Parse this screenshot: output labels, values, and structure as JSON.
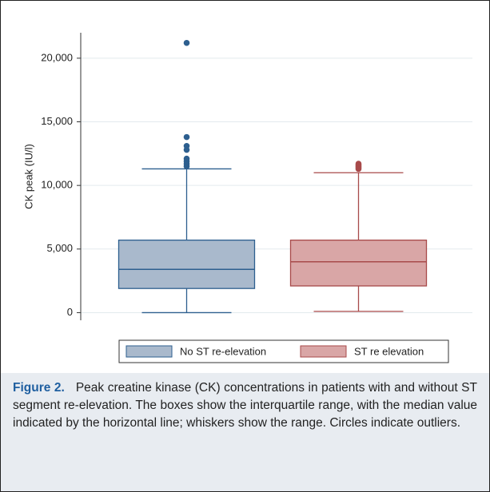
{
  "chart_data": {
    "type": "box",
    "ylabel": "CK peak (IU/l)",
    "ylim": [
      -600,
      22000
    ],
    "yticks": [
      0,
      {
        "value": 5000,
        "label": "5,000"
      },
      {
        "value": 10000,
        "label": "10,000"
      },
      {
        "value": 15000,
        "label": "15,000"
      },
      {
        "value": 20000,
        "label": "20,000"
      }
    ],
    "grid": true,
    "series": [
      {
        "name": "No ST re-elevation",
        "color": "#a9b9cc",
        "edge": "#2d5f8f",
        "values": {
          "low": 0,
          "q1": 1900,
          "median": 3400,
          "q3": 5700,
          "high": 11300
        },
        "outliers": [
          11500,
          11700,
          11900,
          12100,
          12800,
          13100,
          13800,
          21200
        ]
      },
      {
        "name": "ST re elevation",
        "color": "#d9a6a6",
        "edge": "#a84a4a",
        "values": {
          "low": 100,
          "q1": 2100,
          "median": 4000,
          "q3": 5700,
          "high": 11000
        },
        "outliers": [
          11300,
          11400,
          11500,
          11600,
          11700
        ]
      }
    ]
  },
  "caption": {
    "label": "Figure 2.",
    "text": "Peak creatine kinase (CK) concentrations in patients with and without ST segment re-elevation. The boxes show the interquartile range, with the median value indicated by the horizontal line; whiskers show the range. Circles indicate outliers."
  }
}
